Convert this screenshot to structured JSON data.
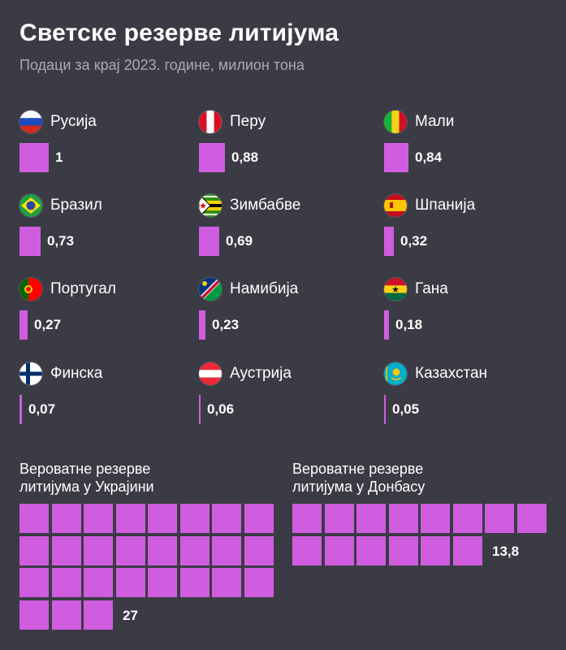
{
  "title": "Светске резерве литијума",
  "subtitle": "Подаци за крај 2023. године, милион тона",
  "colors": {
    "background": "#3a3b44",
    "accent": "#d05de0",
    "subtitle": "#a9aab3"
  },
  "chart_data": {
    "type": "bar",
    "categories": [
      "Русија",
      "Перу",
      "Мали",
      "Бразил",
      "Зимбабве",
      "Шпанија",
      "Португал",
      "Намибија",
      "Гана",
      "Финска",
      "Аустрија",
      "Казахстан"
    ],
    "values": [
      1,
      0.88,
      0.84,
      0.73,
      0.69,
      0.32,
      0.27,
      0.23,
      0.18,
      0.07,
      0.06,
      0.05
    ],
    "value_labels": [
      "1",
      "0,88",
      "0,84",
      "0,73",
      "0,69",
      "0,32",
      "0,27",
      "0,23",
      "0,18",
      "0,07",
      "0,06",
      "0,05"
    ],
    "flags": [
      "russia",
      "peru",
      "mali",
      "brazil",
      "zimbabwe",
      "spain",
      "portugal",
      "namibia",
      "ghana",
      "finland",
      "austria",
      "kazakhstan"
    ],
    "waffles": [
      {
        "label_lines": [
          "Вероватне резерве",
          "литијума у Украјини"
        ],
        "value": 27,
        "value_label": "27"
      },
      {
        "label_lines": [
          "Вероватне резерве",
          "литијума у Донбасу"
        ],
        "value": 13.8,
        "value_label": "13,8"
      }
    ]
  }
}
